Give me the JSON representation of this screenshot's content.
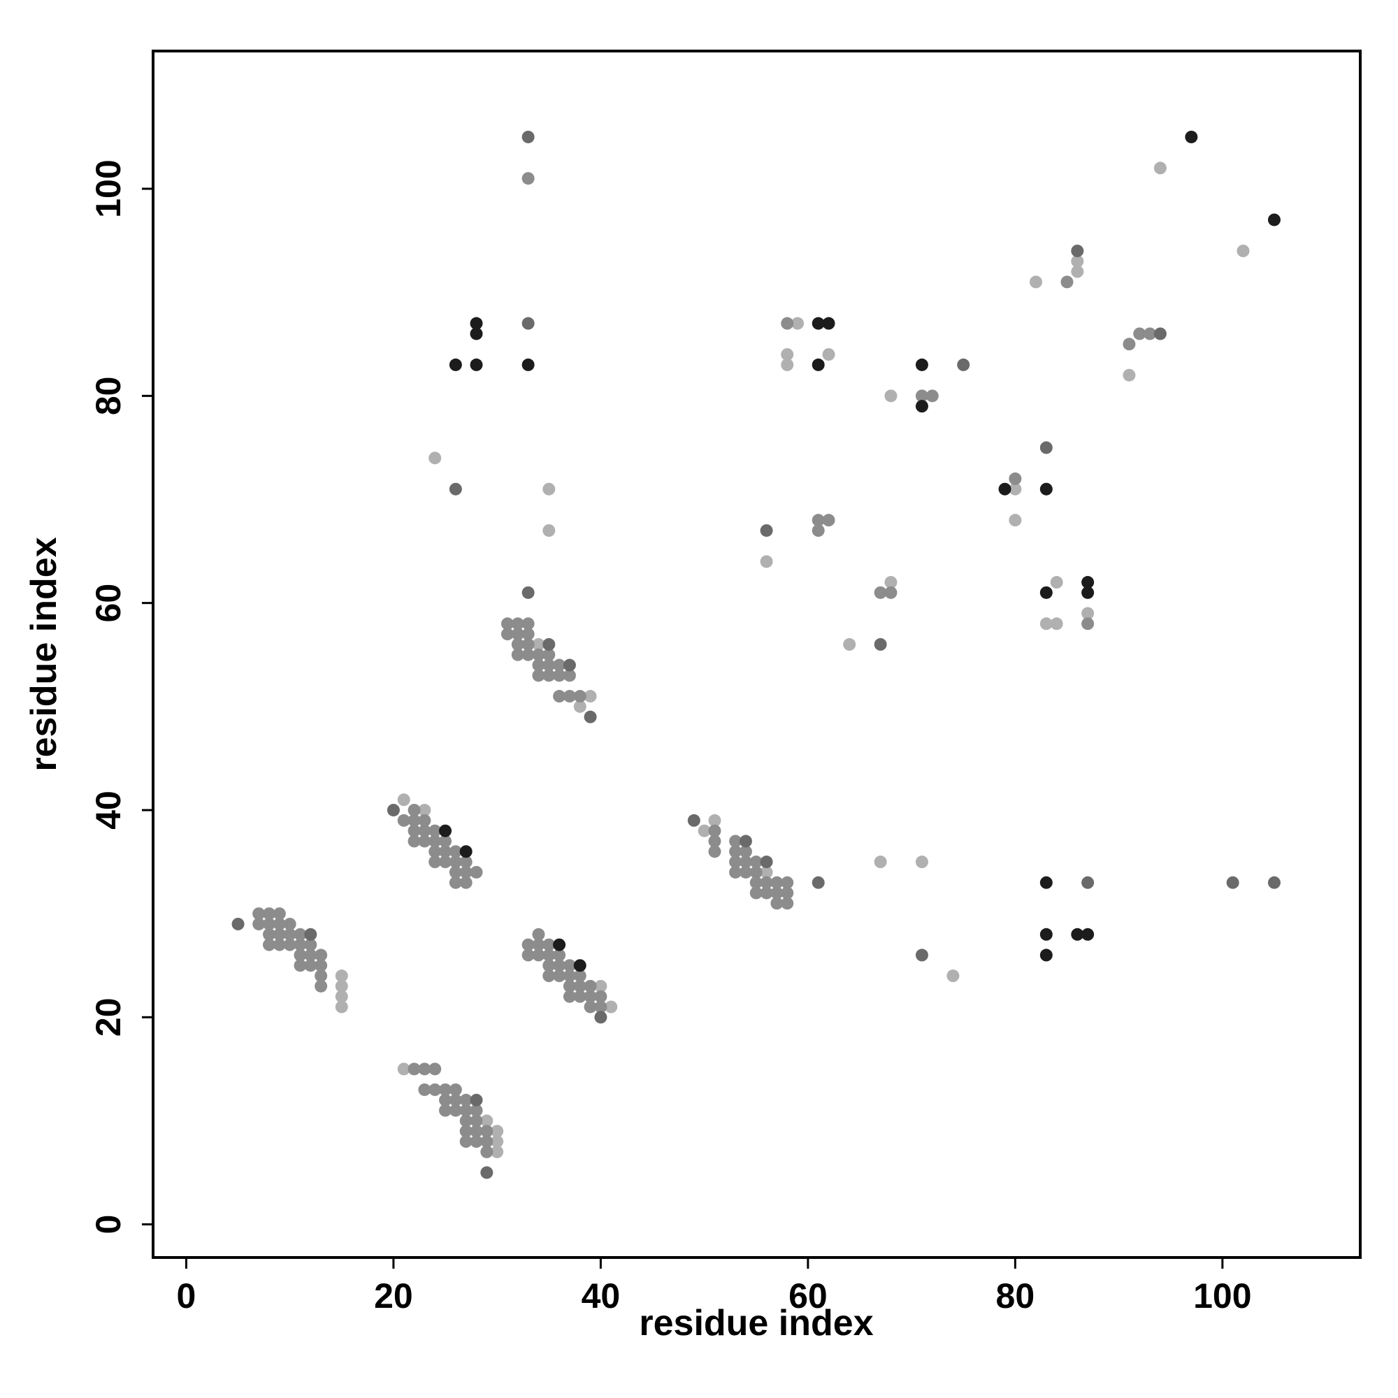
{
  "chart_data": {
    "type": "scatter",
    "x_label": "residue index",
    "y_label": "residue index",
    "xlim": [
      -3.2,
      113.3
    ],
    "ylim": [
      -3.2,
      113.3
    ],
    "xticks": [
      0,
      20,
      40,
      60,
      80,
      100
    ],
    "yticks": [
      0,
      20,
      40,
      60,
      80,
      100
    ],
    "series": [
      {
        "color": "#b0b0b0",
        "x": [
          15,
          15,
          15,
          15,
          21,
          29,
          30,
          30,
          30,
          21,
          23,
          40,
          41,
          34,
          39,
          38,
          50,
          51,
          56,
          24,
          35,
          35,
          59,
          58,
          58,
          62,
          56,
          64,
          68,
          68,
          67,
          71,
          74,
          80,
          80,
          82,
          86,
          86,
          84,
          83,
          84,
          87,
          91,
          94,
          102
        ],
        "y": [
          24,
          23,
          22,
          21,
          15,
          10,
          9,
          8,
          7,
          41,
          40,
          23,
          21,
          56,
          51,
          50,
          38,
          39,
          34,
          74,
          71,
          67,
          87,
          84,
          83,
          84,
          64,
          56,
          62,
          80,
          35,
          35,
          24,
          71,
          68,
          91,
          93,
          92,
          62,
          58,
          58,
          59,
          82,
          102,
          94
        ]
      },
      {
        "color": "#8c8c8c",
        "x": [
          7,
          8,
          9,
          7,
          8,
          9,
          10,
          8,
          9,
          10,
          11,
          8,
          9,
          10,
          11,
          12,
          11,
          12,
          13,
          11,
          12,
          13,
          13,
          13,
          22,
          23,
          24,
          23,
          24,
          25,
          26,
          25,
          26,
          27,
          25,
          26,
          27,
          28,
          27,
          28,
          27,
          28,
          29,
          27,
          28,
          29,
          29,
          22,
          21,
          22,
          23,
          22,
          23,
          24,
          22,
          23,
          24,
          25,
          24,
          25,
          26,
          24,
          25,
          26,
          27,
          26,
          27,
          28,
          26,
          27,
          33,
          34,
          35,
          34,
          33,
          34,
          35,
          36,
          35,
          36,
          37,
          35,
          36,
          37,
          38,
          37,
          38,
          39,
          37,
          38,
          39,
          40,
          39,
          40,
          31,
          32,
          33,
          31,
          32,
          33,
          32,
          33,
          32,
          33,
          34,
          35,
          34,
          35,
          36,
          34,
          35,
          36,
          37,
          36,
          37,
          38,
          51,
          51,
          51,
          53,
          53,
          54,
          53,
          54,
          55,
          53,
          54,
          55,
          55,
          56,
          57,
          58,
          55,
          56,
          57,
          58,
          57,
          58,
          33,
          58,
          61,
          62,
          61,
          67,
          68,
          71,
          72,
          80,
          85,
          87,
          91,
          92,
          93
        ],
        "y": [
          30,
          30,
          30,
          29,
          29,
          29,
          29,
          28,
          28,
          28,
          28,
          27,
          27,
          27,
          27,
          27,
          26,
          26,
          26,
          25,
          25,
          25,
          24,
          23,
          15,
          15,
          15,
          13,
          13,
          13,
          13,
          12,
          12,
          12,
          11,
          11,
          11,
          11,
          10,
          10,
          9,
          9,
          9,
          8,
          8,
          8,
          7,
          40,
          39,
          39,
          39,
          38,
          38,
          38,
          37,
          37,
          37,
          37,
          36,
          36,
          36,
          35,
          35,
          35,
          35,
          34,
          34,
          34,
          33,
          33,
          27,
          27,
          27,
          28,
          26,
          26,
          26,
          26,
          25,
          25,
          25,
          24,
          24,
          24,
          24,
          23,
          23,
          23,
          22,
          22,
          22,
          22,
          21,
          21,
          58,
          58,
          58,
          57,
          57,
          57,
          56,
          56,
          55,
          55,
          55,
          55,
          54,
          54,
          54,
          53,
          53,
          53,
          53,
          51,
          51,
          51,
          38,
          37,
          36,
          37,
          36,
          36,
          35,
          35,
          35,
          34,
          34,
          34,
          33,
          33,
          33,
          33,
          32,
          32,
          32,
          32,
          31,
          31,
          101,
          87,
          68,
          68,
          67,
          61,
          61,
          80,
          80,
          72,
          91,
          58,
          85,
          86,
          86
        ]
      },
      {
        "color": "#6a6a6a",
        "x": [
          5,
          12,
          28,
          29,
          20,
          40,
          35,
          37,
          39,
          33,
          49,
          54,
          56,
          61,
          33,
          33,
          26,
          56,
          67,
          75,
          71,
          83,
          86,
          94,
          87,
          101,
          105
        ],
        "y": [
          29,
          28,
          12,
          5,
          40,
          20,
          56,
          54,
          49,
          61,
          39,
          37,
          35,
          33,
          105,
          87,
          71,
          67,
          56,
          83,
          26,
          75,
          94,
          86,
          33,
          33,
          33
        ]
      },
      {
        "color": "#1c1c1c",
        "x": [
          25,
          27,
          36,
          38,
          28,
          28,
          26,
          28,
          33,
          61,
          62,
          61,
          71,
          71,
          79,
          83,
          83,
          87,
          87,
          97,
          105,
          83,
          83,
          86,
          87,
          83
        ],
        "y": [
          38,
          36,
          27,
          25,
          87,
          86,
          83,
          83,
          83,
          87,
          87,
          83,
          83,
          79,
          71,
          71,
          61,
          62,
          61,
          105,
          97,
          33,
          28,
          28,
          28,
          26
        ]
      }
    ]
  }
}
